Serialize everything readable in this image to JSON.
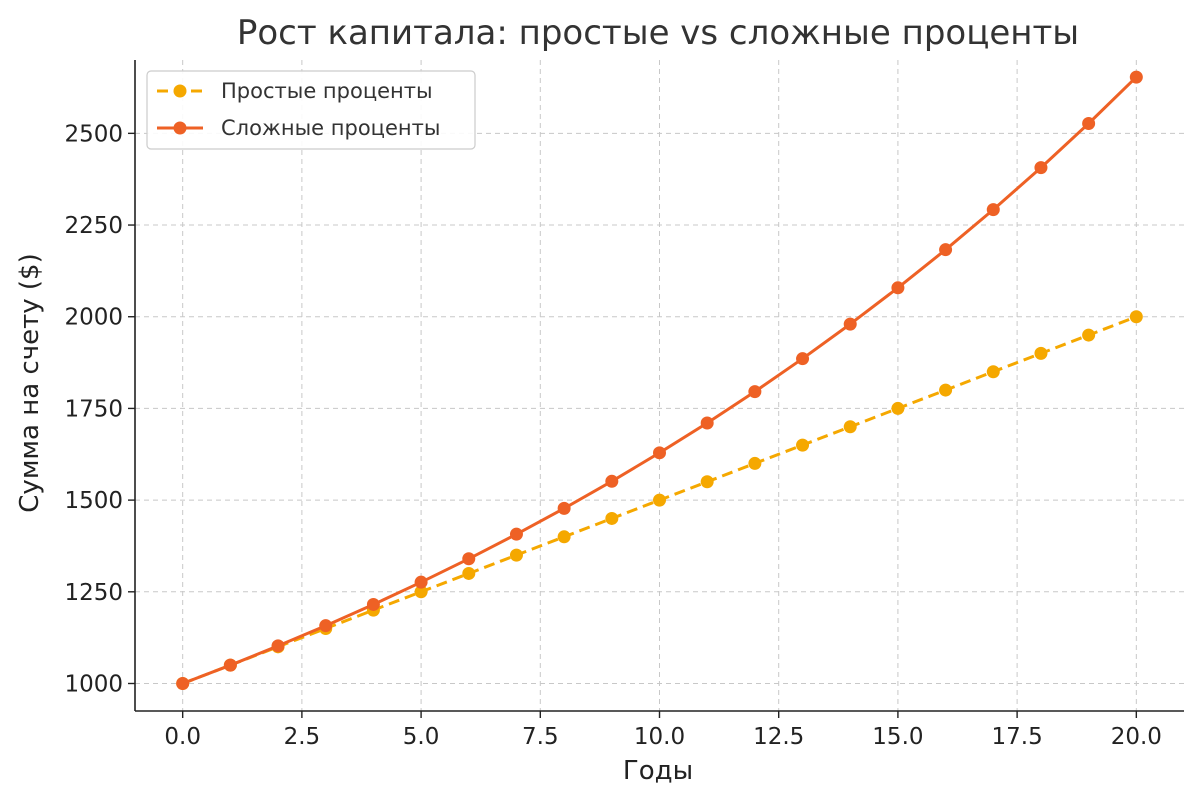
{
  "chart_data": {
    "type": "line",
    "title": "Рост капитала: простые vs сложные проценты",
    "xlabel": "Годы",
    "ylabel": "Сумма на счету ($)",
    "xlim": [
      -1,
      21
    ],
    "ylim": [
      925,
      2700
    ],
    "x_ticks": [
      "0.0",
      "2.5",
      "5.0",
      "7.5",
      "10.0",
      "12.5",
      "15.0",
      "17.5",
      "20.0"
    ],
    "y_ticks": [
      "1000",
      "1250",
      "1500",
      "1750",
      "2000",
      "2250",
      "2500"
    ],
    "grid": true,
    "legend_position": "top-left",
    "x": [
      0,
      1,
      2,
      3,
      4,
      5,
      6,
      7,
      8,
      9,
      10,
      11,
      12,
      13,
      14,
      15,
      16,
      17,
      18,
      19,
      20
    ],
    "series": [
      {
        "name": "Простые проценты",
        "color": "#F5A800",
        "line_style": "dashed",
        "marker": "circle",
        "values": [
          1000,
          1050,
          1100,
          1150,
          1200,
          1250,
          1300,
          1350,
          1400,
          1450,
          1500,
          1550,
          1600,
          1650,
          1700,
          1750,
          1800,
          1850,
          1900,
          1950,
          2000
        ]
      },
      {
        "name": "Сложные проценты",
        "color": "#EE6125",
        "line_style": "solid",
        "marker": "circle",
        "values": [
          1000,
          1050,
          1102.5,
          1157.63,
          1215.51,
          1276.28,
          1340.1,
          1407.1,
          1477.46,
          1551.33,
          1628.89,
          1710.34,
          1795.86,
          1885.65,
          1979.93,
          2078.93,
          2182.87,
          2292.02,
          2406.62,
          2526.95,
          2653.3
        ]
      }
    ]
  }
}
